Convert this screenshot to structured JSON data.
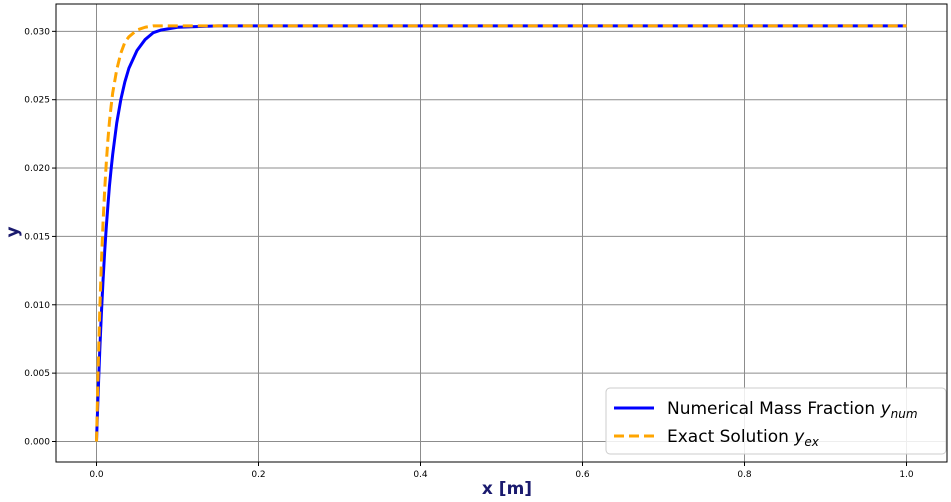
{
  "chart_data": {
    "type": "line",
    "xlabel": "x [m]",
    "ylabel": "y",
    "xlim": [
      -0.05,
      1.05
    ],
    "ylim": [
      -0.0015,
      0.032
    ],
    "x_ticks": [
      "0.0",
      "0.2",
      "0.4",
      "0.6",
      "0.8",
      "1.0"
    ],
    "y_ticks": [
      "0.000",
      "0.005",
      "0.010",
      "0.015",
      "0.020",
      "0.025",
      "0.030"
    ],
    "grid": true,
    "legend_placement": "lower-right",
    "series": [
      {
        "name": "Numerical Mass Fraction",
        "name_sub": "num",
        "color": "#0000ff",
        "style": "solid",
        "x": [
          0,
          0.002,
          0.004,
          0.006,
          0.008,
          0.01,
          0.012,
          0.014,
          0.016,
          0.018,
          0.02,
          0.025,
          0.03,
          0.035,
          0.04,
          0.05,
          0.06,
          0.07,
          0.08,
          0.1,
          0.15,
          0.2,
          0.3,
          0.4,
          0.5,
          0.6,
          0.7,
          0.8,
          0.9,
          1.0
        ],
        "y": [
          0.0,
          0.0035,
          0.0066,
          0.0093,
          0.0117,
          0.0138,
          0.0156,
          0.0172,
          0.0187,
          0.0199,
          0.021,
          0.0233,
          0.025,
          0.0263,
          0.0273,
          0.0286,
          0.0294,
          0.0299,
          0.0301,
          0.0303,
          0.0304,
          0.0304,
          0.0304,
          0.0304,
          0.0304,
          0.0304,
          0.0304,
          0.0304,
          0.0304,
          0.0304
        ]
      },
      {
        "name": "Exact Solution",
        "name_sub": "ex",
        "color": "#ffa500",
        "style": "dashed",
        "x": [
          0,
          0.002,
          0.004,
          0.006,
          0.008,
          0.01,
          0.012,
          0.014,
          0.016,
          0.018,
          0.02,
          0.025,
          0.03,
          0.035,
          0.04,
          0.05,
          0.06,
          0.07,
          0.1,
          0.2,
          0.4,
          0.6,
          0.8,
          1.0
        ],
        "y": [
          0.0,
          0.0052,
          0.0095,
          0.013,
          0.0159,
          0.0183,
          0.0203,
          0.022,
          0.0234,
          0.0245,
          0.0255,
          0.0272,
          0.0284,
          0.0292,
          0.0296,
          0.0301,
          0.0303,
          0.0304,
          0.0304,
          0.0304,
          0.0304,
          0.0304,
          0.0304,
          0.0304
        ]
      }
    ]
  }
}
